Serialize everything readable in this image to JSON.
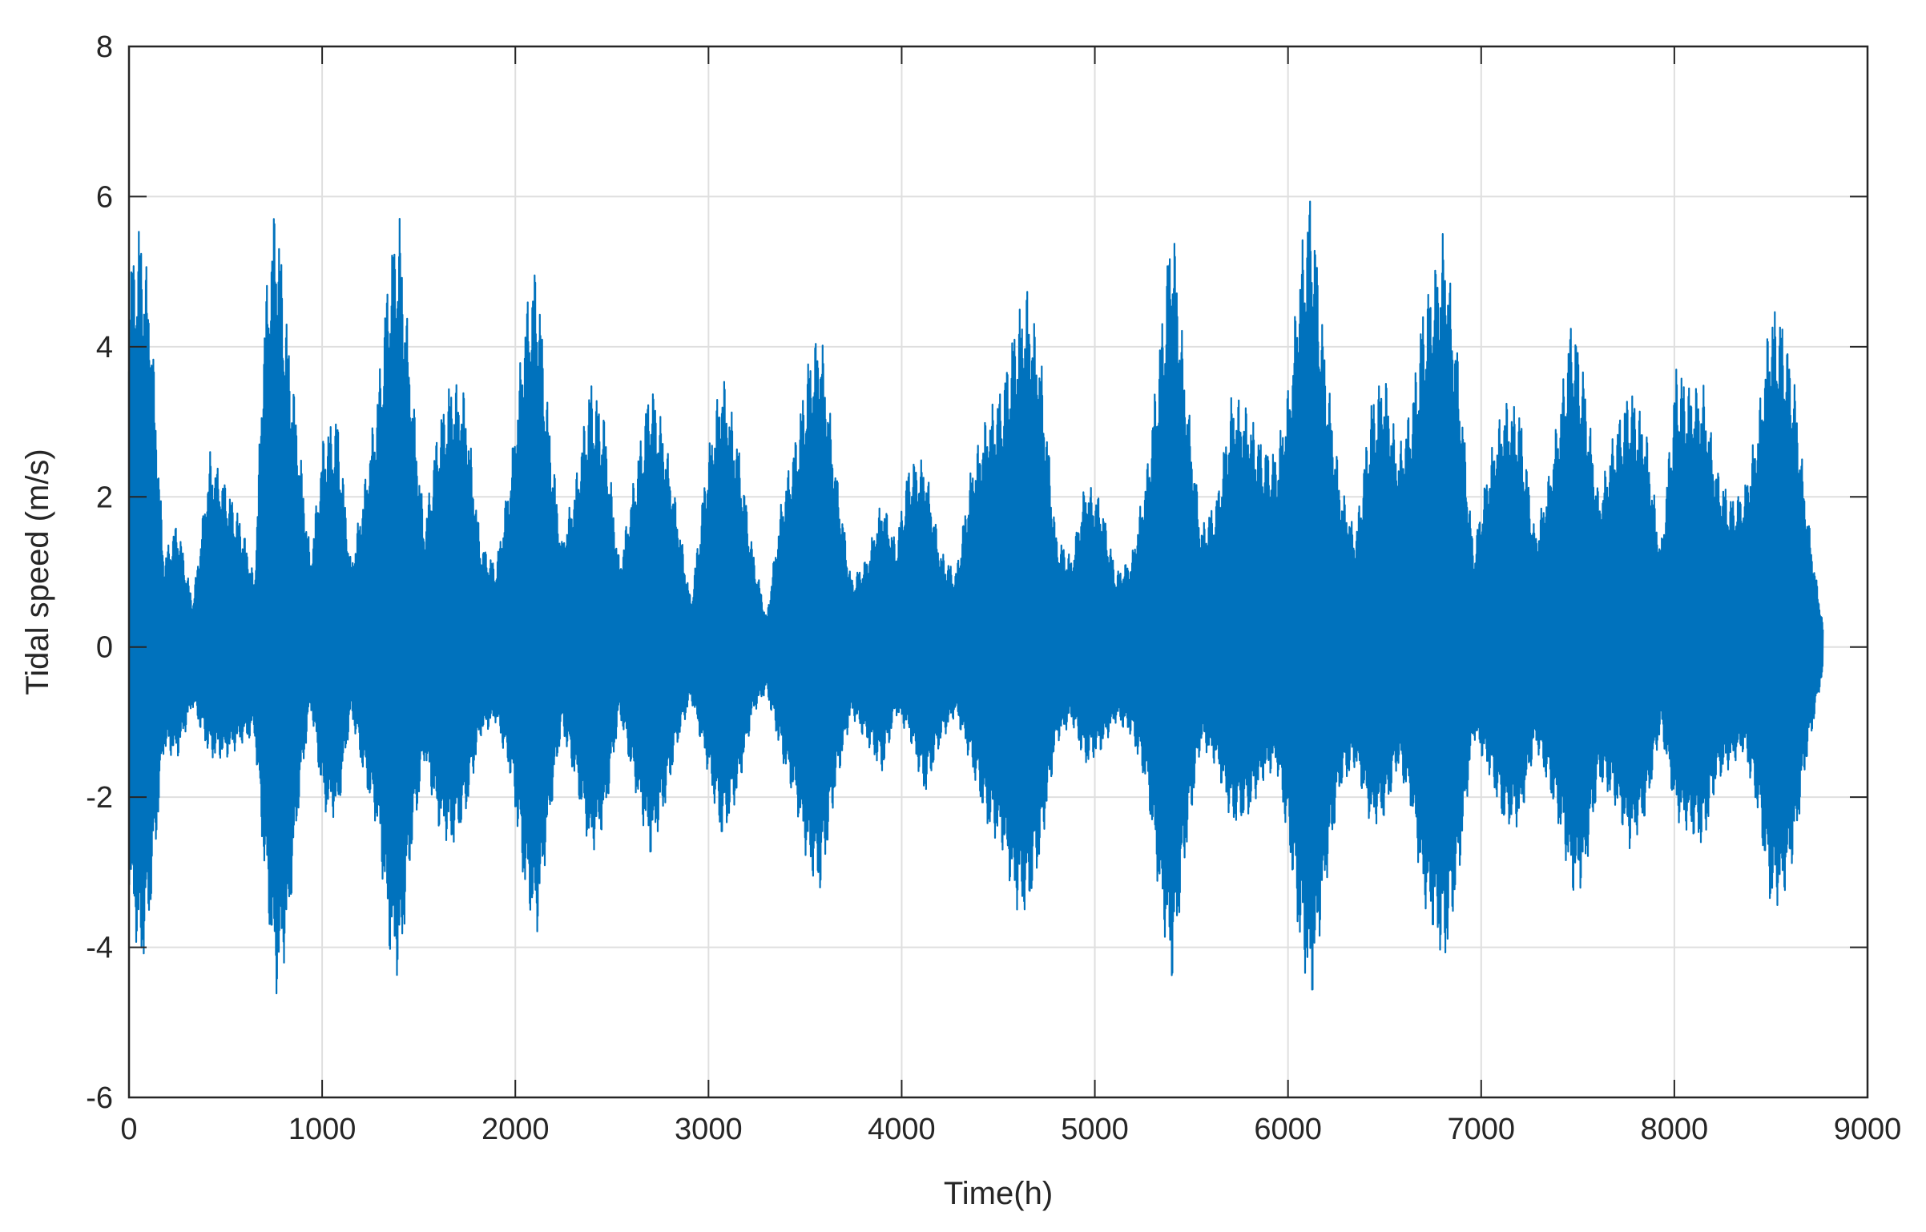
{
  "chart_data": {
    "type": "line",
    "title": "",
    "xlabel": "Time(h)",
    "ylabel": "Tidal speed (m/s)",
    "xlim": [
      0,
      9000
    ],
    "ylim": [
      -6,
      8
    ],
    "xticks": [
      0,
      1000,
      2000,
      3000,
      4000,
      5000,
      6000,
      7000,
      8000,
      9000
    ],
    "xtick_labels": [
      "0",
      "1000",
      "2000",
      "3000",
      "4000",
      "5000",
      "6000",
      "7000",
      "8000",
      "9000"
    ],
    "yticks": [
      -6,
      -4,
      -2,
      0,
      2,
      4,
      6,
      8
    ],
    "ytick_labels": [
      "-6",
      "-4",
      "-2",
      "0",
      "2",
      "4",
      "6",
      "8"
    ],
    "grid": true,
    "series_color": "#0072BD",
    "series": [
      {
        "envelope_x": [
          0,
          60,
          110,
          180,
          250,
          330,
          420,
          500,
          580,
          650,
          700,
          760,
          820,
          880,
          940,
          1010,
          1080,
          1150,
          1220,
          1290,
          1350,
          1400,
          1460,
          1530,
          1600,
          1670,
          1740,
          1820,
          1900,
          1980,
          2050,
          2110,
          2170,
          2240,
          2310,
          2390,
          2460,
          2540,
          2610,
          2700,
          2770,
          2840,
          2910,
          2990,
          3070,
          3150,
          3230,
          3300,
          3380,
          3450,
          3520,
          3580,
          3660,
          3740,
          3820,
          3900,
          3970,
          4040,
          4120,
          4200,
          4280,
          4360,
          4440,
          4520,
          4590,
          4650,
          4720,
          4800,
          4880,
          4950,
          5030,
          5110,
          5190,
          5270,
          5340,
          5400,
          5470,
          5550,
          5630,
          5710,
          5790,
          5870,
          5940,
          6010,
          6060,
          6120,
          6190,
          6270,
          6350,
          6430,
          6500,
          6570,
          6640,
          6700,
          6750,
          6810,
          6880,
          6960,
          7040,
          7120,
          7200,
          7280,
          7350,
          7420,
          7470,
          7530,
          7610,
          7690,
          7770,
          7850,
          7930,
          8010,
          8080,
          8150,
          8220,
          8290,
          8360,
          8430,
          8500,
          8560,
          8620,
          8680,
          8730,
          8770
        ],
        "envelope_max": [
          5.1,
          5.7,
          4.7,
          1.2,
          1.7,
          0.6,
          2.6,
          2.2,
          1.7,
          0.9,
          4.5,
          6.1,
          4.3,
          2.8,
          1.2,
          2.9,
          3.1,
          1.1,
          2.2,
          3.5,
          5.3,
          5.8,
          3.7,
          1.6,
          3.0,
          3.6,
          3.4,
          1.4,
          1.1,
          2.5,
          4.5,
          5.2,
          3.2,
          1.4,
          2.2,
          3.6,
          3.1,
          1.1,
          2.2,
          3.6,
          2.9,
          1.8,
          0.6,
          2.5,
          3.7,
          2.8,
          1.3,
          0.4,
          2.0,
          2.8,
          3.9,
          4.3,
          2.4,
          0.9,
          1.2,
          2.0,
          1.4,
          2.5,
          2.5,
          1.3,
          1.0,
          2.4,
          3.1,
          3.5,
          4.4,
          4.8,
          3.9,
          1.5,
          1.2,
          2.2,
          2.0,
          1.0,
          1.2,
          2.4,
          4.2,
          5.9,
          3.6,
          1.6,
          2.0,
          3.4,
          3.2,
          2.7,
          2.6,
          3.6,
          5.2,
          6.2,
          4.0,
          2.2,
          1.5,
          3.3,
          3.7,
          2.6,
          3.3,
          4.6,
          5.0,
          5.6,
          3.9,
          1.3,
          2.5,
          3.3,
          3.2,
          1.5,
          2.3,
          3.5,
          4.5,
          3.7,
          2.0,
          2.9,
          3.5,
          3.0,
          1.3,
          3.8,
          3.5,
          3.5,
          2.4,
          2.0,
          2.1,
          3.0,
          4.6,
          4.4,
          3.6,
          2.0,
          1.0,
          0.3
        ],
        "envelope_min": [
          -3.2,
          -4.4,
          -3.6,
          -1.4,
          -1.5,
          -0.8,
          -1.5,
          -1.5,
          -1.3,
          -1.2,
          -3.0,
          -4.7,
          -4.0,
          -2.1,
          -0.8,
          -2.2,
          -2.3,
          -0.9,
          -1.8,
          -2.5,
          -4.1,
          -4.5,
          -2.8,
          -1.5,
          -2.4,
          -2.7,
          -2.3,
          -1.2,
          -1.0,
          -1.8,
          -3.3,
          -3.9,
          -2.5,
          -1.1,
          -1.8,
          -2.8,
          -2.4,
          -0.9,
          -1.8,
          -2.8,
          -2.2,
          -1.3,
          -0.7,
          -1.6,
          -2.6,
          -2.0,
          -0.9,
          -0.6,
          -1.5,
          -2.1,
          -3.0,
          -3.3,
          -1.9,
          -0.9,
          -1.3,
          -1.7,
          -0.9,
          -1.2,
          -2.0,
          -1.3,
          -0.9,
          -1.6,
          -2.4,
          -2.7,
          -3.5,
          -3.6,
          -2.8,
          -1.3,
          -1.0,
          -1.6,
          -1.4,
          -1.0,
          -1.2,
          -1.9,
          -3.5,
          -4.5,
          -2.8,
          -1.3,
          -1.6,
          -2.4,
          -2.3,
          -1.8,
          -1.6,
          -2.8,
          -4.0,
          -4.8,
          -3.3,
          -1.9,
          -1.6,
          -2.4,
          -2.3,
          -1.6,
          -2.2,
          -3.4,
          -3.8,
          -4.3,
          -3.2,
          -1.2,
          -1.7,
          -2.4,
          -2.4,
          -1.3,
          -1.9,
          -2.6,
          -3.3,
          -3.2,
          -1.8,
          -2.1,
          -2.7,
          -2.3,
          -1.1,
          -2.3,
          -2.5,
          -2.7,
          -1.8,
          -1.6,
          -1.4,
          -2.2,
          -3.5,
          -3.4,
          -2.8,
          -1.6,
          -0.9,
          -0.3
        ]
      }
    ]
  }
}
